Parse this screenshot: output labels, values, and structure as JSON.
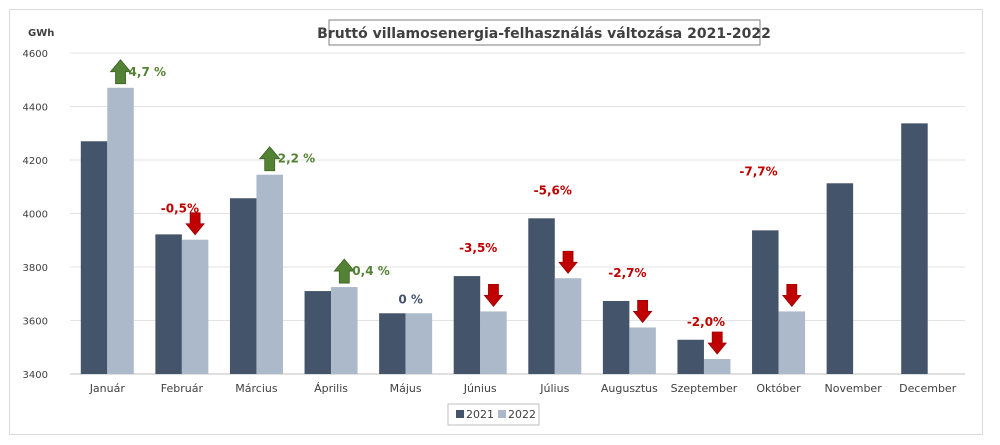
{
  "chart_data": {
    "type": "bar",
    "title": "Bruttó villamosenergia-felhasználás változása 2021-2022",
    "ylabel": "GWh",
    "ylim": [
      3400,
      4600
    ],
    "yticks": [
      3400,
      3600,
      3800,
      4000,
      4200,
      4400,
      4600
    ],
    "grid": true,
    "legend_position": "bottom",
    "categories": [
      "Január",
      "Február",
      "Március",
      "Április",
      "Május",
      "Június",
      "Július",
      "Augusztus",
      "Szeptember",
      "Október",
      "November",
      "December"
    ],
    "series": [
      {
        "name": "2021",
        "color": "#44546a",
        "values": [
          4270,
          3922,
          4057,
          3710,
          3627,
          3766,
          3982,
          3673,
          3528,
          3937,
          4113,
          4337
        ]
      },
      {
        "name": "2022",
        "color": "#acb9ca",
        "values": [
          4470,
          3902,
          4145,
          3725,
          3627,
          3634,
          3758,
          3574,
          3456,
          3634,
          null,
          null
        ]
      }
    ],
    "annotations": [
      {
        "category": "Január",
        "label": "4,7 %",
        "direction": "up",
        "color": "#548235"
      },
      {
        "category": "Február",
        "label": "-0,5%",
        "direction": "down",
        "color": "#c00000"
      },
      {
        "category": "Március",
        "label": "2,2 %",
        "direction": "up",
        "color": "#548235"
      },
      {
        "category": "Április",
        "label": "0,4 %",
        "direction": "up",
        "color": "#548235"
      },
      {
        "category": "Május",
        "label": "0 %",
        "direction": "none",
        "color": "#44546a"
      },
      {
        "category": "Június",
        "label": "-3,5%",
        "direction": "down",
        "color": "#c00000"
      },
      {
        "category": "Július",
        "label": "-5,6%",
        "direction": "down",
        "color": "#c00000"
      },
      {
        "category": "Augusztus",
        "label": "-2,7%",
        "direction": "down",
        "color": "#c00000"
      },
      {
        "category": "Szeptember",
        "label": "-2,0%",
        "direction": "down",
        "color": "#c00000"
      },
      {
        "category": "Október",
        "label": "-7,7%",
        "direction": "down",
        "color": "#c00000"
      }
    ]
  }
}
